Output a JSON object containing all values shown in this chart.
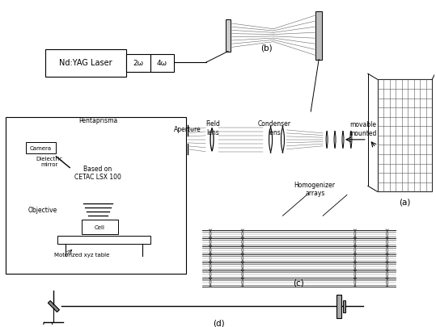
{
  "title": "",
  "bg_color": "#ffffff",
  "text_color": "#000000",
  "labels": {
    "nd_yag": "Nd:YAG Laser",
    "2omega": "2ω",
    "4omega": "4ω",
    "pentaprisma": "Pentaprisma",
    "aperture": "Aperture",
    "field_lens": "Field\nlens",
    "condenser_lens": "Condenser\nlens",
    "movable_mounted": "movable\nmounted",
    "homogenizer": "Homogenizer\narrays",
    "camera": "Camera",
    "dielectric_mirror": "Dielectric\nmirror",
    "based_on": "Based on\nCETAC LSX 100",
    "objective": "Objective",
    "cell": "Cell",
    "motor_table": "Motorized xyz table",
    "label_a": "(a)",
    "label_b": "(b)",
    "label_c": "(c)",
    "label_d": "(d)"
  }
}
